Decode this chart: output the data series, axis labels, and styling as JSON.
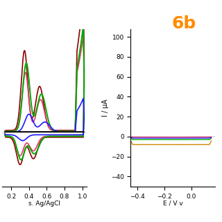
{
  "label": "6b",
  "label_color": "#FF8C00",
  "label_fontsize": 18,
  "left_xlabel": "s. Ag/AgCl",
  "left_xlim": [
    0.1,
    1.05
  ],
  "left_xticks": [
    0.2,
    0.4,
    0.6,
    0.8,
    1.0
  ],
  "left_ylim": [
    -0.55,
    1.05
  ],
  "right_xlabel": "E / V v",
  "right_xlim": [
    -0.45,
    0.18
  ],
  "right_xticks": [
    -0.4,
    -0.2,
    0.0
  ],
  "right_ylabel": "I / μA",
  "right_ylim": [
    -50,
    108
  ],
  "right_yticks": [
    -40,
    -20,
    0,
    20,
    40,
    60,
    80,
    100
  ],
  "left_curves": [
    {
      "color": "#8B0000",
      "lw": 1.2
    },
    {
      "color": "#E8336A",
      "lw": 1.2
    },
    {
      "color": "#00AA00",
      "lw": 1.4
    },
    {
      "color": "#1A1AFF",
      "lw": 1.2
    },
    {
      "color": "#111111",
      "lw": 0.8
    }
  ],
  "right_curves": [
    {
      "color": "#00AA00",
      "lw": 1.0
    },
    {
      "color": "#1A1AFF",
      "lw": 1.0
    },
    {
      "color": "#CC8800",
      "lw": 1.0
    },
    {
      "color": "#E8336A",
      "lw": 0.9
    }
  ]
}
